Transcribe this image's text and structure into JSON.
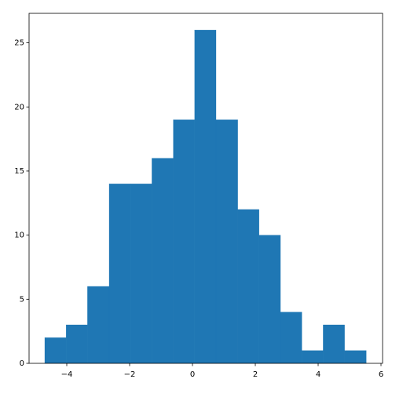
{
  "chart_data": {
    "type": "histogram",
    "bins": [
      -4.7,
      -4.02,
      -3.34,
      -2.65,
      -1.97,
      -1.29,
      -0.61,
      0.07,
      0.75,
      1.44,
      2.12,
      2.8,
      3.48,
      4.16,
      4.84,
      5.53
    ],
    "counts": [
      2,
      3,
      6,
      14,
      14,
      16,
      19,
      26,
      19,
      12,
      10,
      4,
      1,
      3,
      1
    ],
    "color": "#1f77b4",
    "xlim": [
      -5.2,
      6.05
    ],
    "xticks": [
      {
        "value": -4,
        "label": "−4"
      },
      {
        "value": -2,
        "label": "−2"
      },
      0,
      2,
      4,
      6
    ],
    "ylim": [
      0,
      27.3
    ],
    "yticks": [
      0,
      5,
      10,
      15,
      20,
      25
    ]
  }
}
